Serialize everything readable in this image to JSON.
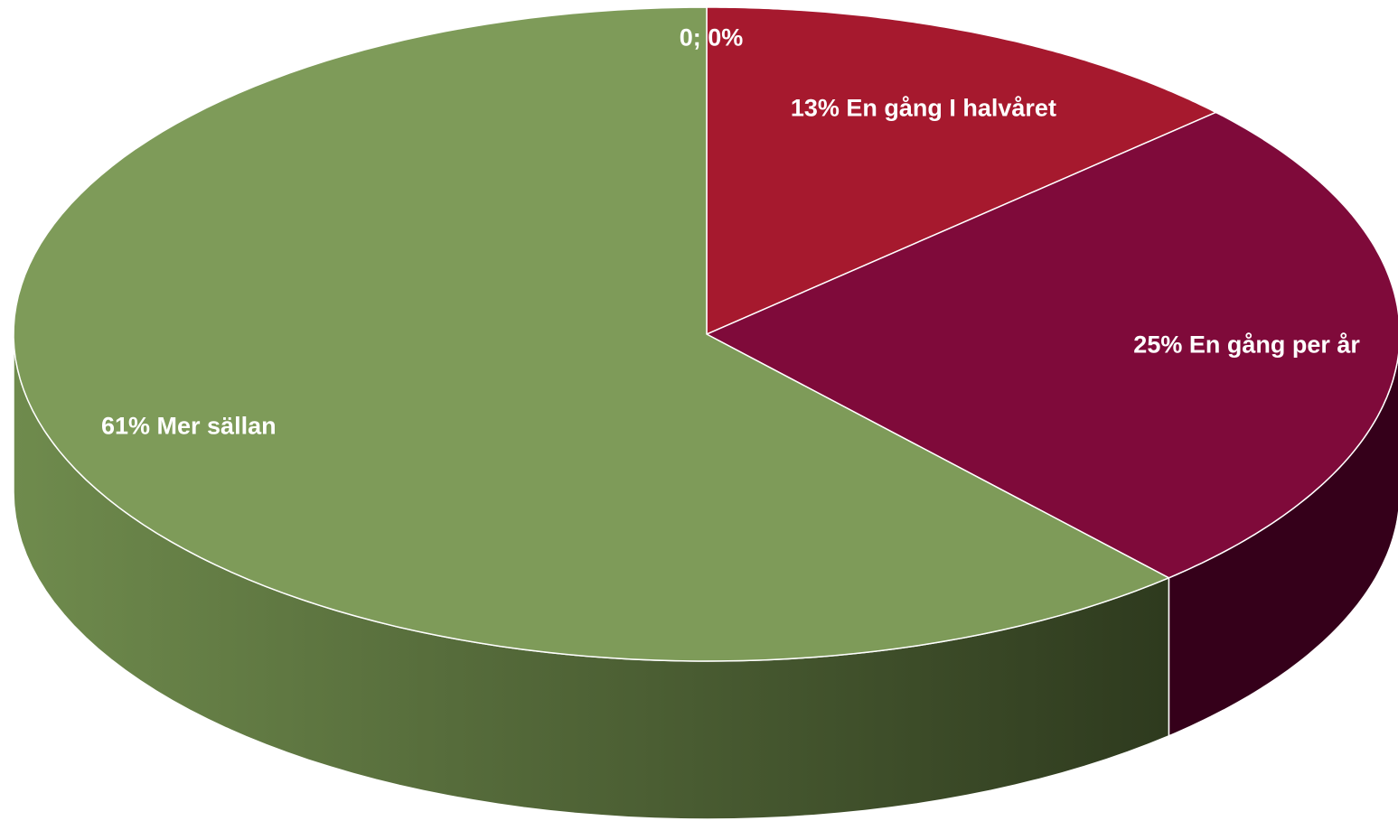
{
  "chart_data": {
    "type": "pie",
    "style": "3d",
    "title": "",
    "slices": [
      {
        "label": "0; 0%",
        "value": 0,
        "color_top": "#A6192E",
        "color_side": "#6E0F1D"
      },
      {
        "label": "13% En gång I halvåret",
        "value": 13,
        "color_top": "#A6192E",
        "color_side": "#5A0C18"
      },
      {
        "label": "25% En gång per år",
        "value": 25,
        "color_top": "#7F0A3A",
        "color_side": "#35001A"
      },
      {
        "label": "61% Mer sällan",
        "value": 61,
        "color_top": "#7E9B59",
        "color_side": "#2E3A1E"
      }
    ]
  }
}
